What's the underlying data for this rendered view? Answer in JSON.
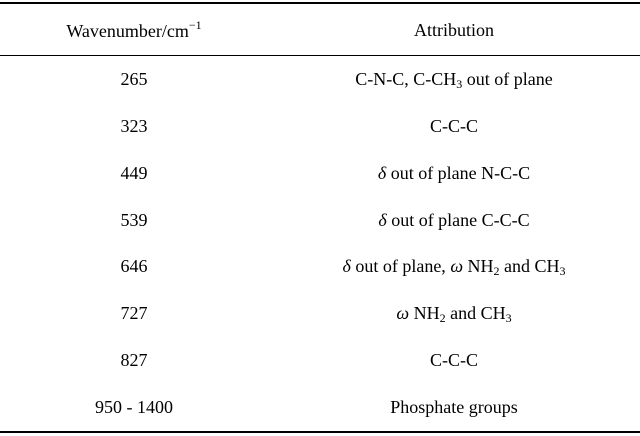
{
  "table": {
    "header": {
      "wavenumber_label": "Wavenumber/cm",
      "wavenumber_unit_exponent": "−1",
      "attribution_label": "Attribution"
    },
    "rows": [
      {
        "wavenumber": "265",
        "attribution": [
          {
            "t": "C-N-C, C-CH"
          },
          {
            "t": "3",
            "sub": true
          },
          {
            "t": " out of plane"
          }
        ]
      },
      {
        "wavenumber": "323",
        "attribution": [
          {
            "t": "C-C-C"
          }
        ]
      },
      {
        "wavenumber": "449",
        "attribution": [
          {
            "t": "δ",
            "i": true
          },
          {
            "t": " out of plane N-C-C"
          }
        ]
      },
      {
        "wavenumber": "539",
        "attribution": [
          {
            "t": "δ",
            "i": true
          },
          {
            "t": " out of plane C-C-C"
          }
        ]
      },
      {
        "wavenumber": "646",
        "attribution": [
          {
            "t": "δ",
            "i": true
          },
          {
            "t": " out of plane, "
          },
          {
            "t": "ω",
            "i": true
          },
          {
            "t": " NH"
          },
          {
            "t": "2",
            "sub": true
          },
          {
            "t": " and CH"
          },
          {
            "t": "3",
            "sub": true
          }
        ]
      },
      {
        "wavenumber": "727",
        "attribution": [
          {
            "t": "ω",
            "i": true
          },
          {
            "t": " NH"
          },
          {
            "t": "2",
            "sub": true
          },
          {
            "t": " and CH"
          },
          {
            "t": "3",
            "sub": true
          }
        ]
      },
      {
        "wavenumber": "827",
        "attribution": [
          {
            "t": "C-C-C"
          }
        ]
      },
      {
        "wavenumber": "950 - 1400",
        "attribution": [
          {
            "t": "Phosphate groups"
          }
        ]
      }
    ]
  }
}
